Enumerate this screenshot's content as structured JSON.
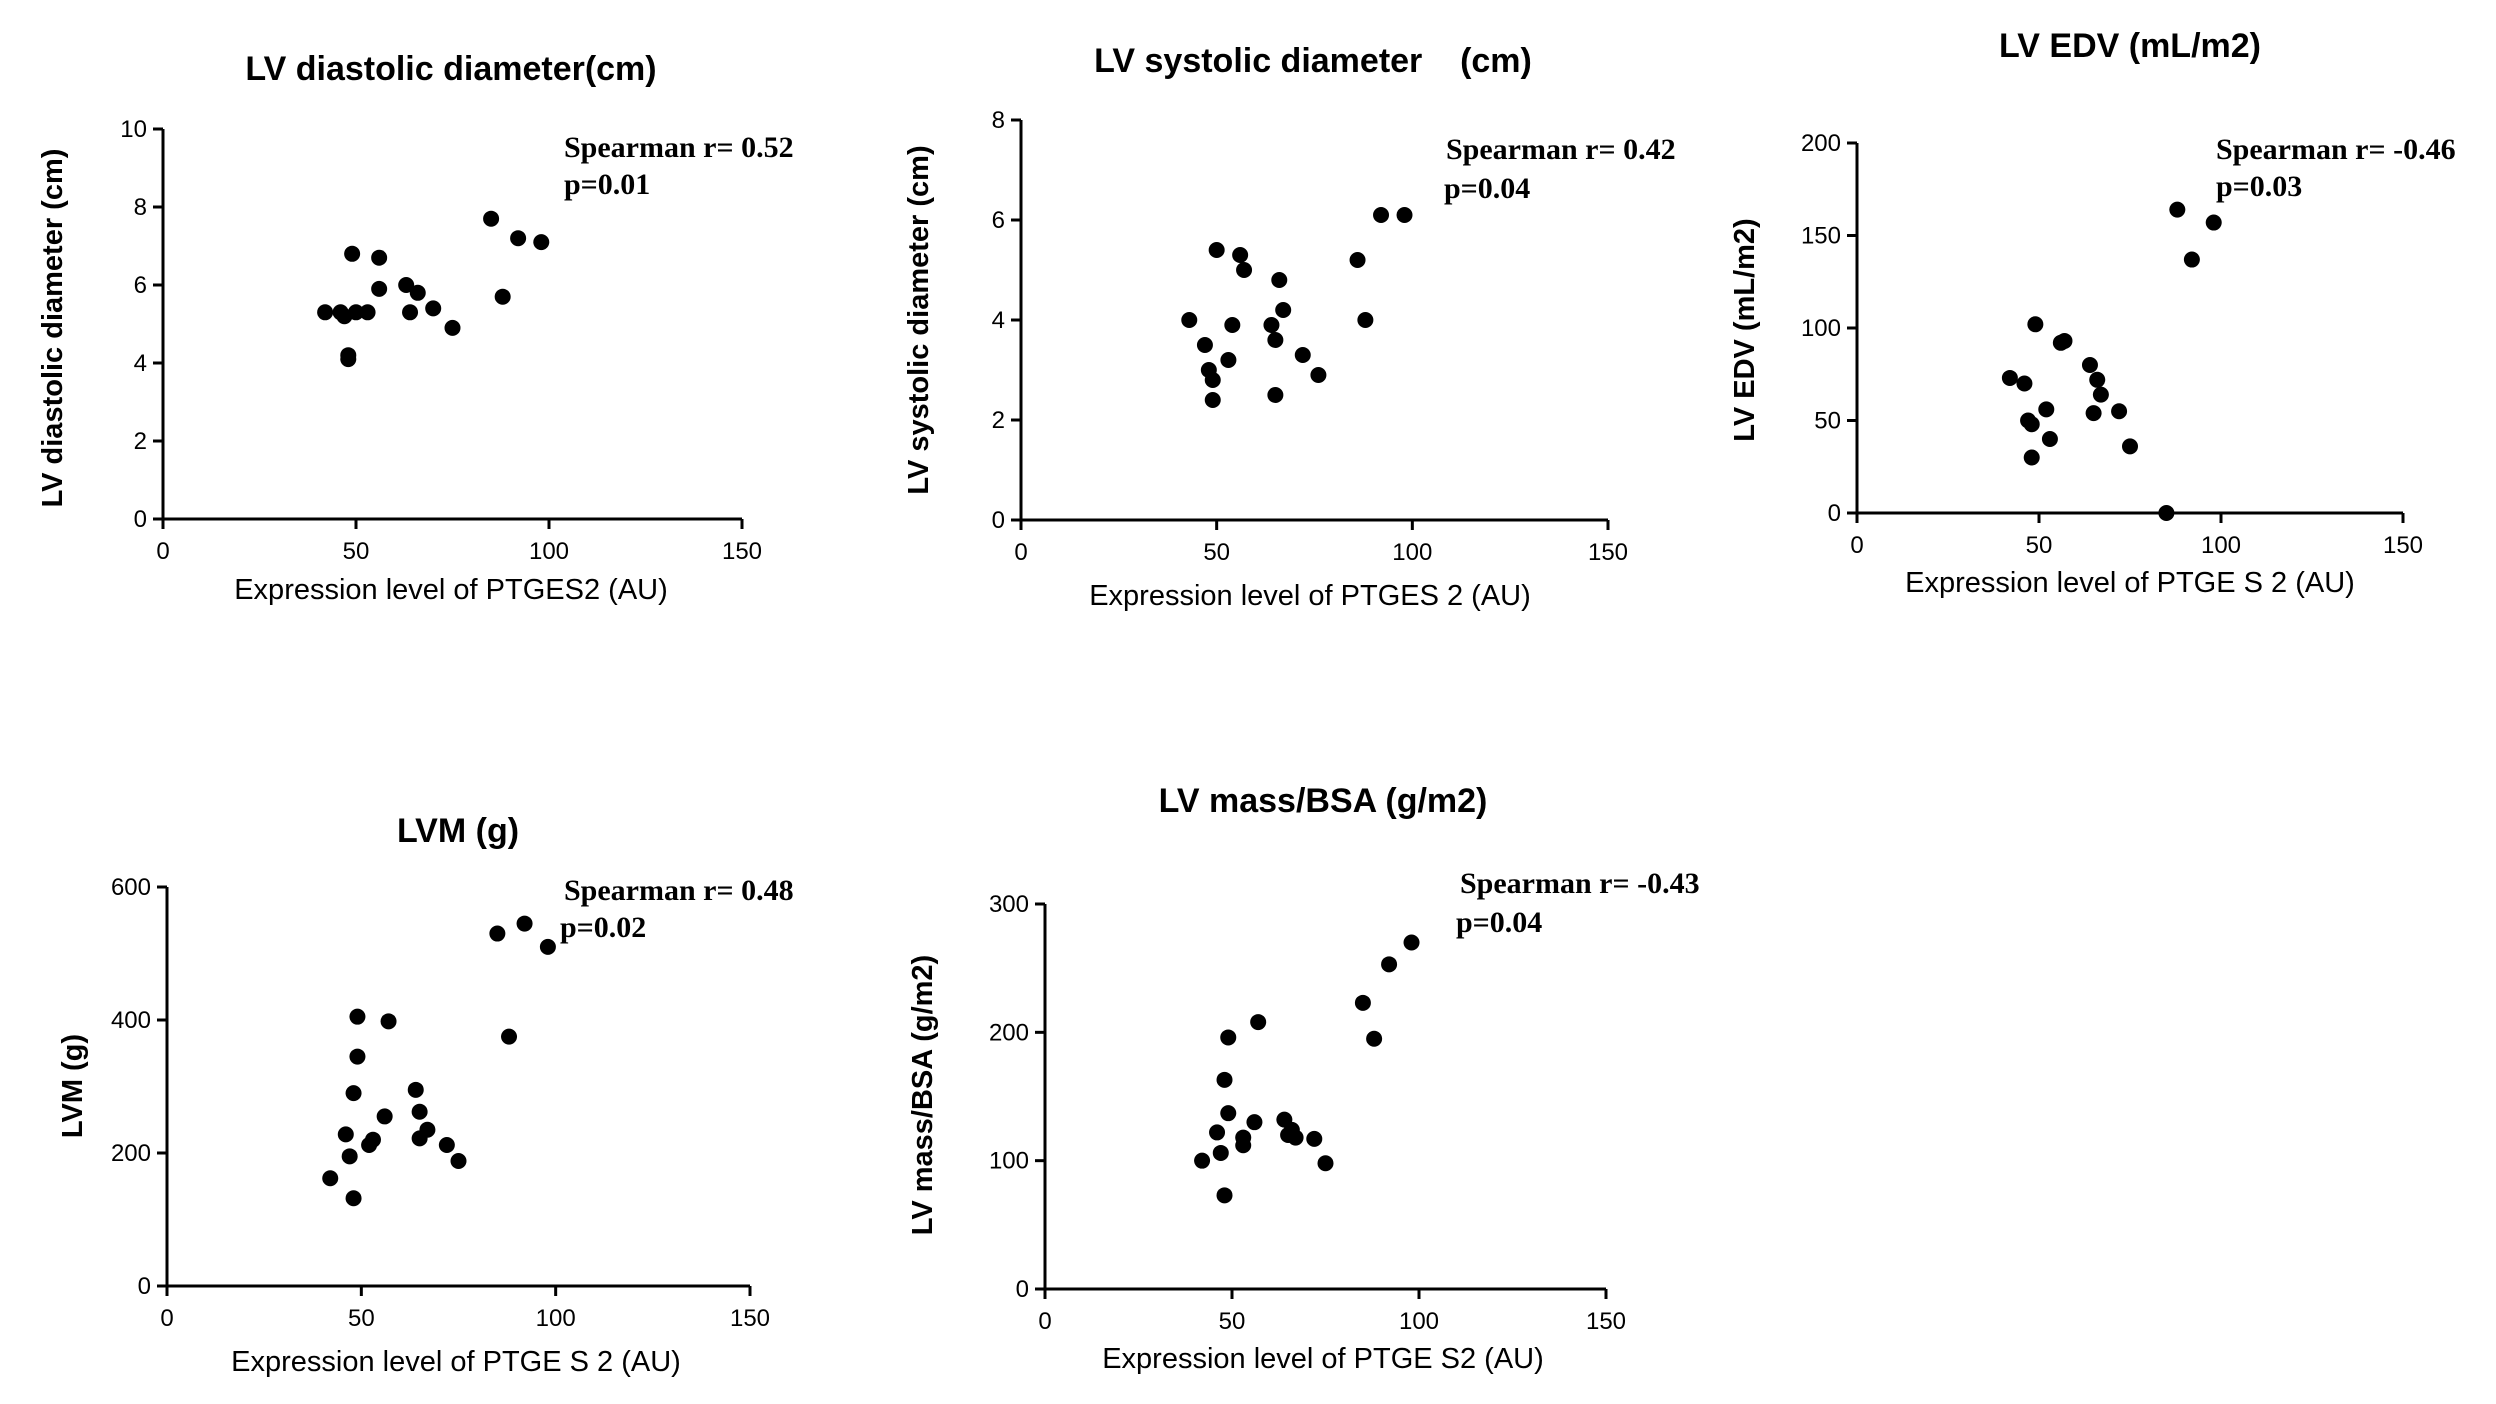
{
  "chart_data": [
    {
      "type": "scatter",
      "title": "LV diastolic diameter(cm)",
      "xlabel": "Expression level of PTGES2 (AU)",
      "ylabel": "LV diastolic diameter (cm)",
      "xlim": [
        0,
        150
      ],
      "ylim": [
        0,
        10
      ],
      "xticks": [
        0,
        50,
        100,
        150
      ],
      "yticks": [
        0,
        2,
        4,
        6,
        8,
        10
      ],
      "annotation": [
        "Spearman r= 0.52",
        "p=0.01"
      ],
      "x": [
        42,
        46,
        47,
        48,
        48,
        49,
        50,
        53,
        56,
        56,
        63,
        64,
        66,
        70,
        75,
        85,
        88,
        92,
        98
      ],
      "y": [
        5.3,
        5.3,
        5.2,
        4.2,
        4.1,
        6.8,
        5.3,
        5.3,
        5.9,
        6.7,
        6.0,
        5.3,
        5.8,
        5.4,
        4.9,
        7.7,
        5.7,
        7.2,
        7.1
      ]
    },
    {
      "type": "scatter",
      "title": "LV systolic diameter    (cm)",
      "xlabel": "Expression level of PTGES 2 (AU)",
      "ylabel": "LV systolic diameter (cm)",
      "xlim": [
        0,
        150
      ],
      "ylim": [
        0,
        8
      ],
      "xticks": [
        0,
        50,
        100,
        150
      ],
      "yticks": [
        0,
        2,
        4,
        6,
        8
      ],
      "annotation": [
        "Spearman r= 0.42",
        "p=0.04"
      ],
      "x": [
        43,
        47,
        48,
        49,
        49,
        50,
        53,
        54,
        56,
        57,
        64,
        65,
        65,
        66,
        67,
        72,
        76,
        86,
        88,
        92,
        98
      ],
      "y": [
        4.0,
        3.5,
        3.0,
        2.8,
        2.4,
        5.4,
        3.2,
        3.9,
        5.3,
        5.0,
        3.9,
        2.5,
        3.6,
        4.8,
        4.2,
        3.3,
        2.9,
        5.2,
        4.0,
        6.1,
        6.1
      ]
    },
    {
      "type": "scatter",
      "title": "LV EDV (mL/m2)",
      "xlabel": "Expression level of PTGE S 2 (AU)",
      "ylabel": "LV EDV (mL/m2)",
      "xlim": [
        0,
        150
      ],
      "ylim": [
        0,
        200
      ],
      "xticks": [
        0,
        50,
        100,
        150
      ],
      "yticks": [
        0,
        50,
        100,
        150,
        200
      ],
      "annotation": [
        "Spearman r= -0.46",
        "p=0.03"
      ],
      "x": [
        42,
        46,
        47,
        48,
        48,
        49,
        52,
        53,
        56,
        57,
        64,
        65,
        66,
        67,
        72,
        75,
        85,
        88,
        92,
        98
      ],
      "y": [
        73,
        70,
        50,
        48,
        30,
        102,
        56,
        40,
        92,
        93,
        80,
        54,
        72,
        64,
        55,
        36,
        0,
        164,
        137,
        157
      ]
    },
    {
      "type": "scatter",
      "title": "LVM (g)",
      "xlabel": "Expression level of PTGE S 2 (AU)",
      "ylabel": "LVM (g)",
      "xlim": [
        0,
        150
      ],
      "ylim": [
        0,
        600
      ],
      "xticks": [
        0,
        50,
        100,
        150
      ],
      "yticks": [
        0,
        200,
        400,
        600
      ],
      "annotation": [
        "Spearman r= 0.48",
        "p=0.02"
      ],
      "x": [
        42,
        46,
        47,
        48,
        48,
        49,
        49,
        52,
        53,
        56,
        57,
        64,
        65,
        65,
        67,
        72,
        75,
        85,
        88,
        92,
        98
      ],
      "y": [
        162,
        228,
        195,
        290,
        132,
        405,
        345,
        212,
        220,
        255,
        398,
        295,
        222,
        262,
        235,
        212,
        188,
        530,
        375,
        545,
        510
      ]
    },
    {
      "type": "scatter",
      "title": "LV mass/BSA (g/m2)",
      "xlabel": "Expression level of PTGE S2 (AU)",
      "ylabel": "LV mass/BSA (g/m2)",
      "xlim": [
        0,
        150
      ],
      "ylim": [
        0,
        300
      ],
      "xticks": [
        0,
        50,
        100,
        150
      ],
      "yticks": [
        0,
        100,
        200,
        300
      ],
      "annotation": [
        "Spearman r= -0.43",
        "p=0.04"
      ],
      "x": [
        42,
        46,
        47,
        48,
        48,
        49,
        49,
        53,
        53,
        56,
        57,
        64,
        65,
        66,
        67,
        72,
        75,
        85,
        88,
        92,
        98
      ],
      "y": [
        100,
        122,
        106,
        73,
        163,
        196,
        137,
        112,
        118,
        130,
        208,
        132,
        120,
        124,
        118,
        117,
        98,
        223,
        195,
        253,
        270
      ]
    }
  ]
}
